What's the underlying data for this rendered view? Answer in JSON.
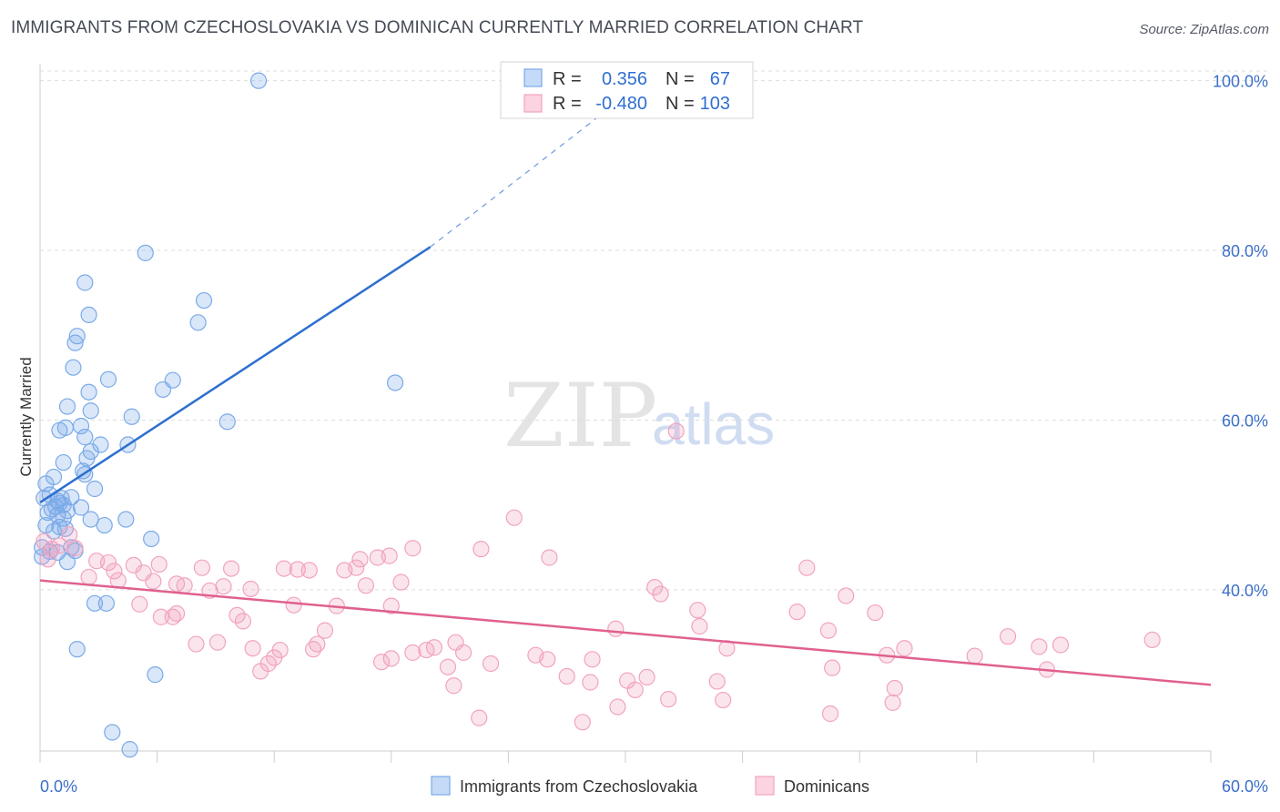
{
  "header": {
    "title": "IMMIGRANTS FROM CZECHOSLOVAKIA VS DOMINICAN CURRENTLY MARRIED CORRELATION CHART",
    "source": "Source: ZipAtlas.com"
  },
  "watermark": {
    "zip": "ZIP",
    "atlas": "atlas"
  },
  "legend": {
    "rows": [
      {
        "r_label": "R =",
        "r_value": "0.356",
        "n_label": "N =",
        "n_value": "67",
        "color": "#7aaae8"
      },
      {
        "r_label": "R =",
        "r_value": "-0.480",
        "n_label": "N =",
        "n_value": "103",
        "color": "#f2a3bf"
      }
    ]
  },
  "bottom_legend": [
    {
      "label": "Immigrants from Czechoslovakia",
      "color": "#7aaae8"
    },
    {
      "label": "Dominicans",
      "color": "#f2a3bf"
    }
  ],
  "chart_data": {
    "type": "scatter",
    "xlabel": "",
    "ylabel": "Currently Married",
    "xlim": [
      0,
      60
    ],
    "ylim": [
      21,
      102
    ],
    "x_tick_labels": [
      "0.0%",
      "60.0%"
    ],
    "y_ticks": [
      40,
      60,
      80,
      100
    ],
    "y_tick_labels": [
      "40.0%",
      "60.0%",
      "80.0%",
      "100.0%"
    ],
    "grid": "horizontal dashed",
    "legend_position": "top-center",
    "series": [
      {
        "name": "Immigrants from Czechoslovakia",
        "color": "#7aaae8",
        "line_color": "#2d6fcf",
        "trend": {
          "x": [
            0,
            20
          ],
          "y": [
            50.3,
            80.4
          ],
          "dashed_to": [
            31,
            100
          ]
        },
        "points": [
          [
            11.2,
            100
          ],
          [
            5.4,
            79.7
          ],
          [
            2.3,
            76.2
          ],
          [
            8.4,
            74.1
          ],
          [
            2.5,
            72.4
          ],
          [
            8.1,
            71.5
          ],
          [
            1.9,
            69.9
          ],
          [
            1.8,
            69.1
          ],
          [
            1.7,
            66.2
          ],
          [
            3.5,
            64.8
          ],
          [
            6.8,
            64.7
          ],
          [
            18.2,
            64.4
          ],
          [
            6.3,
            63.6
          ],
          [
            2.5,
            63.3
          ],
          [
            1.4,
            61.6
          ],
          [
            2.6,
            61.1
          ],
          [
            4.7,
            60.4
          ],
          [
            9.6,
            59.8
          ],
          [
            2.1,
            59.3
          ],
          [
            1.3,
            59.1
          ],
          [
            1.0,
            58.8
          ],
          [
            2.3,
            58.0
          ],
          [
            4.5,
            57.1
          ],
          [
            3.1,
            57.1
          ],
          [
            2.6,
            56.3
          ],
          [
            2.4,
            55.5
          ],
          [
            1.2,
            55.0
          ],
          [
            2.2,
            54.0
          ],
          [
            2.3,
            53.6
          ],
          [
            0.7,
            53.3
          ],
          [
            0.3,
            52.5
          ],
          [
            2.8,
            51.9
          ],
          [
            0.5,
            51.2
          ],
          [
            1.1,
            50.8
          ],
          [
            0.9,
            50.5
          ],
          [
            1.0,
            50.2
          ],
          [
            1.2,
            50.0
          ],
          [
            0.8,
            49.8
          ],
          [
            2.1,
            49.7
          ],
          [
            0.6,
            49.5
          ],
          [
            1.4,
            49.3
          ],
          [
            0.4,
            49.1
          ],
          [
            0.9,
            48.8
          ],
          [
            1.2,
            48.4
          ],
          [
            4.4,
            48.3
          ],
          [
            2.6,
            48.3
          ],
          [
            0.3,
            47.6
          ],
          [
            1.0,
            47.4
          ],
          [
            1.3,
            47.2
          ],
          [
            3.3,
            47.6
          ],
          [
            0.7,
            46.9
          ],
          [
            5.7,
            46.0
          ],
          [
            1.6,
            45.0
          ],
          [
            0.5,
            44.5
          ],
          [
            1.8,
            44.6
          ],
          [
            0.9,
            44.4
          ],
          [
            1.4,
            43.3
          ],
          [
            0.1,
            43.9
          ],
          [
            2.8,
            38.4
          ],
          [
            3.4,
            38.4
          ],
          [
            1.9,
            33.0
          ],
          [
            5.9,
            30.0
          ],
          [
            3.7,
            23.2
          ],
          [
            4.6,
            21.2
          ],
          [
            0.2,
            50.8
          ],
          [
            1.6,
            50.9
          ],
          [
            0.1,
            45.0
          ]
        ]
      },
      {
        "name": "Dominicans",
        "color": "#f2a3bf",
        "line_color": "#e0608f",
        "trend": {
          "x": [
            0,
            60
          ],
          "y": [
            41.1,
            28.8
          ]
        },
        "points": [
          [
            32.6,
            58.7
          ],
          [
            24.3,
            48.5
          ],
          [
            1.5,
            46.5
          ],
          [
            0.2,
            45.7
          ],
          [
            1.0,
            45.2
          ],
          [
            1.8,
            44.9
          ],
          [
            0.6,
            44.8
          ],
          [
            19.1,
            44.9
          ],
          [
            22.6,
            44.8
          ],
          [
            26.1,
            43.8
          ],
          [
            17.3,
            43.8
          ],
          [
            16.4,
            43.6
          ],
          [
            0.4,
            43.6
          ],
          [
            2.9,
            43.4
          ],
          [
            3.5,
            43.2
          ],
          [
            6.1,
            43.0
          ],
          [
            4.8,
            42.9
          ],
          [
            8.3,
            42.6
          ],
          [
            9.8,
            42.5
          ],
          [
            12.5,
            42.5
          ],
          [
            13.2,
            42.4
          ],
          [
            13.8,
            42.3
          ],
          [
            15.6,
            42.3
          ],
          [
            16.2,
            42.6
          ],
          [
            39.3,
            42.6
          ],
          [
            3.8,
            42.2
          ],
          [
            5.3,
            42.0
          ],
          [
            2.5,
            41.5
          ],
          [
            4.0,
            41.1
          ],
          [
            5.8,
            41.0
          ],
          [
            7.0,
            40.7
          ],
          [
            7.4,
            40.5
          ],
          [
            9.4,
            40.4
          ],
          [
            10.8,
            40.1
          ],
          [
            18.5,
            40.9
          ],
          [
            16.7,
            40.5
          ],
          [
            31.5,
            40.3
          ],
          [
            8.7,
            39.9
          ],
          [
            31.8,
            39.5
          ],
          [
            41.3,
            39.3
          ],
          [
            5.1,
            38.3
          ],
          [
            13.0,
            38.2
          ],
          [
            15.2,
            38.1
          ],
          [
            18.0,
            38.1
          ],
          [
            33.7,
            37.6
          ],
          [
            38.8,
            37.4
          ],
          [
            42.8,
            37.3
          ],
          [
            6.2,
            36.8
          ],
          [
            6.8,
            36.8
          ],
          [
            7.0,
            37.2
          ],
          [
            10.1,
            37.0
          ],
          [
            10.4,
            36.3
          ],
          [
            14.6,
            35.2
          ],
          [
            29.5,
            35.4
          ],
          [
            33.8,
            35.7
          ],
          [
            40.4,
            35.2
          ],
          [
            8.0,
            33.6
          ],
          [
            9.1,
            33.8
          ],
          [
            10.9,
            33.1
          ],
          [
            12.3,
            32.9
          ],
          [
            14.0,
            33.0
          ],
          [
            14.2,
            33.6
          ],
          [
            18.0,
            31.9
          ],
          [
            19.1,
            32.6
          ],
          [
            19.8,
            32.9
          ],
          [
            20.2,
            33.2
          ],
          [
            21.3,
            33.8
          ],
          [
            21.7,
            32.6
          ],
          [
            25.4,
            32.3
          ],
          [
            26.0,
            31.8
          ],
          [
            28.3,
            31.8
          ],
          [
            35.2,
            33.1
          ],
          [
            43.4,
            32.3
          ],
          [
            44.3,
            33.1
          ],
          [
            47.9,
            32.2
          ],
          [
            49.6,
            34.5
          ],
          [
            51.2,
            33.3
          ],
          [
            52.3,
            33.5
          ],
          [
            57.0,
            34.1
          ],
          [
            11.7,
            31.3
          ],
          [
            12.0,
            32.0
          ],
          [
            17.5,
            31.5
          ],
          [
            20.9,
            30.9
          ],
          [
            23.1,
            31.3
          ],
          [
            27.0,
            29.8
          ],
          [
            28.2,
            29.1
          ],
          [
            30.1,
            29.3
          ],
          [
            31.1,
            29.7
          ],
          [
            34.7,
            29.2
          ],
          [
            40.6,
            30.8
          ],
          [
            51.6,
            30.6
          ],
          [
            11.3,
            30.4
          ],
          [
            21.2,
            28.7
          ],
          [
            30.5,
            28.2
          ],
          [
            32.2,
            27.1
          ],
          [
            35.0,
            27.0
          ],
          [
            29.6,
            26.2
          ],
          [
            43.8,
            28.4
          ],
          [
            43.7,
            26.7
          ],
          [
            40.5,
            25.4
          ],
          [
            22.5,
            24.9
          ],
          [
            27.8,
            24.4
          ],
          [
            17.9,
            44.0
          ]
        ]
      }
    ]
  }
}
